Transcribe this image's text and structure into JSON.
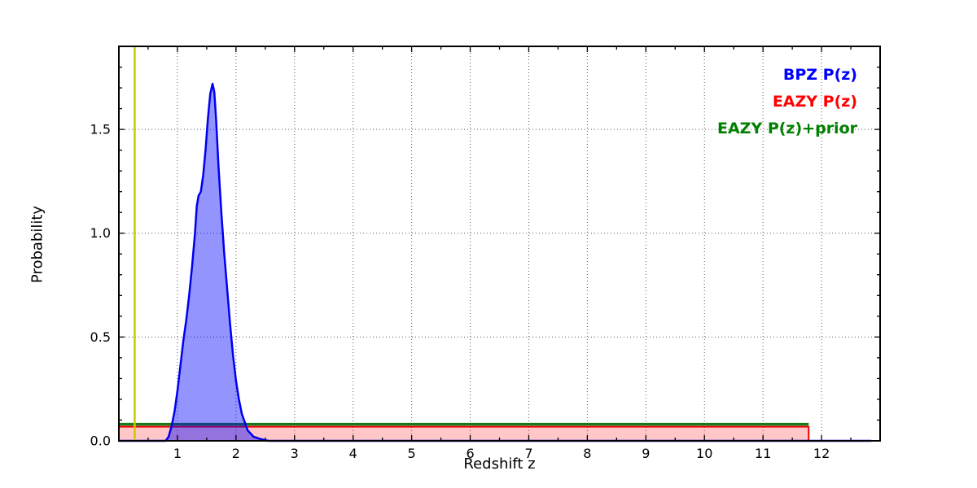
{
  "figure": {
    "background": "#ffffff"
  },
  "chart_data": {
    "type": "line",
    "title": "",
    "xlabel": "Redshift z",
    "ylabel": "Probability",
    "xlim": [
      0,
      13
    ],
    "ylim": [
      0,
      1.9
    ],
    "xticks": [
      1,
      2,
      3,
      4,
      5,
      6,
      7,
      8,
      9,
      10,
      11,
      12
    ],
    "xtick_labels": [
      "1",
      "2",
      "3",
      "4",
      "5",
      "6",
      "7",
      "8",
      "9",
      "10",
      "11",
      "12"
    ],
    "yticks": [
      0.0,
      0.5,
      1.0,
      1.5
    ],
    "ytick_labels": [
      "0.0",
      "0.5",
      "1.0",
      "1.5"
    ],
    "x_minor_step": 0.5,
    "y_minor_step": 0.1,
    "grid": true,
    "grid_style": "dotted",
    "grid_color": "#000000",
    "legend_position": "top-right",
    "legend": [
      {
        "label": "BPZ P(z)",
        "color": "#0000ff"
      },
      {
        "label": "EAZY P(z)",
        "color": "#ff0000"
      },
      {
        "label": "EAZY P(z)+prior",
        "color": "#008000"
      }
    ],
    "series": [
      {
        "name": "EAZY P(z)",
        "color": "#ee0000",
        "fill": "rgba(255,0,0,0.22)",
        "width": 2,
        "x": [
          0,
          11.78,
          11.78
        ],
        "y": [
          0.068,
          0.068,
          0
        ]
      },
      {
        "name": "EAZY P(z)+prior",
        "color": "#1a7a1a",
        "fill": null,
        "width": 3.5,
        "x": [
          0,
          11.78
        ],
        "y": [
          0.08,
          0.08
        ]
      },
      {
        "name": "BPZ P(z)",
        "color": "#0000ee",
        "fill": "rgba(0,0,255,0.42)",
        "width": 2.5,
        "x": [
          0,
          0.8,
          0.85,
          0.9,
          0.95,
          1.0,
          1.05,
          1.1,
          1.15,
          1.2,
          1.25,
          1.3,
          1.33,
          1.36,
          1.4,
          1.44,
          1.48,
          1.52,
          1.56,
          1.6,
          1.63,
          1.66,
          1.7,
          1.75,
          1.8,
          1.85,
          1.9,
          1.95,
          2.0,
          2.05,
          2.1,
          2.2,
          2.3,
          2.4,
          2.55,
          12.85
        ],
        "y": [
          0,
          0.0,
          0.02,
          0.07,
          0.14,
          0.24,
          0.36,
          0.48,
          0.58,
          0.7,
          0.84,
          1.0,
          1.13,
          1.18,
          1.2,
          1.28,
          1.4,
          1.55,
          1.67,
          1.72,
          1.68,
          1.55,
          1.33,
          1.1,
          0.9,
          0.73,
          0.56,
          0.41,
          0.29,
          0.2,
          0.13,
          0.05,
          0.02,
          0.01,
          0,
          0
        ]
      }
    ],
    "vlines": [
      {
        "name": "spec-z-marker",
        "x": 0.27,
        "color": "#c9c900",
        "width": 2.5
      }
    ]
  }
}
